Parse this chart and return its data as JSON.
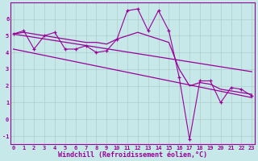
{
  "xlabel": "Windchill (Refroidissement éolien,°C)",
  "ylabel": "",
  "bg_color": "#c6e8e8",
  "line_color": "#990099",
  "grid_color": "#b0cccc",
  "x_data": [
    0,
    1,
    2,
    3,
    4,
    5,
    6,
    7,
    8,
    9,
    10,
    11,
    12,
    13,
    14,
    15,
    16,
    17,
    18,
    19,
    20,
    21,
    22,
    23
  ],
  "y_scatter": [
    5.1,
    5.3,
    4.2,
    5.0,
    5.2,
    4.2,
    4.2,
    4.4,
    4.0,
    4.1,
    4.8,
    6.5,
    6.6,
    5.3,
    6.5,
    5.3,
    2.5,
    -1.2,
    2.3,
    2.3,
    1.0,
    1.9,
    1.8,
    1.4
  ],
  "y_smooth": [
    5.1,
    5.2,
    5.1,
    5.0,
    4.9,
    4.8,
    4.7,
    4.6,
    4.6,
    4.5,
    4.8,
    5.0,
    5.2,
    5.0,
    4.8,
    4.6,
    3.0,
    2.0,
    2.2,
    2.1,
    1.8,
    1.7,
    1.6,
    1.5
  ],
  "y_line1_x": [
    0,
    23
  ],
  "y_line1_y": [
    4.2,
    1.3
  ],
  "y_line2_x": [
    0,
    23
  ],
  "y_line2_y": [
    5.1,
    2.85
  ],
  "ylim": [
    -1.5,
    7.0
  ],
  "xlim": [
    -0.3,
    23.3
  ],
  "yticks": [
    -1,
    0,
    1,
    2,
    3,
    4,
    5,
    6
  ],
  "xticks": [
    0,
    1,
    2,
    3,
    4,
    5,
    6,
    7,
    8,
    9,
    10,
    11,
    12,
    13,
    14,
    15,
    16,
    17,
    18,
    19,
    20,
    21,
    22,
    23
  ],
  "tick_fontsize": 5.0,
  "xlabel_fontsize": 6.0,
  "figsize": [
    3.2,
    2.0
  ],
  "dpi": 100
}
